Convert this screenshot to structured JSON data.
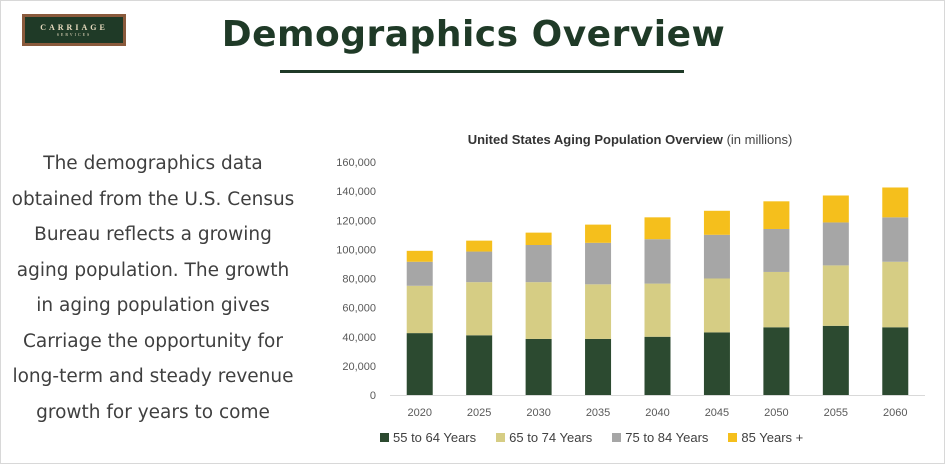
{
  "logo": {
    "main": "CARRIAGE",
    "sub": "SERVICES"
  },
  "page_title": "Demographics Overview",
  "body_text": "The demographics data obtained from the U.S. Census Bureau reflects a growing aging population. The growth in aging population gives Carriage the opportunity for long-term and steady revenue growth for years to come",
  "colors": {
    "title": "#1f3a27",
    "series": [
      "#2c4a30",
      "#d6cd84",
      "#a6a6a6",
      "#f5bf1c"
    ]
  },
  "chart_data": {
    "type": "bar",
    "stacked": true,
    "title": "United States Aging Population Overview",
    "subtitle": "(in millions)",
    "categories": [
      "2020",
      "2025",
      "2030",
      "2035",
      "2040",
      "2045",
      "2050",
      "2055",
      "2060"
    ],
    "series": [
      {
        "name": "55 to 64 Years",
        "values": [
          42500,
          41000,
          38500,
          38500,
          40000,
          43000,
          46500,
          47500,
          46500
        ]
      },
      {
        "name": "65 to 74 Years",
        "values": [
          32500,
          36500,
          39000,
          37500,
          36500,
          37000,
          38000,
          41500,
          45000
        ]
      },
      {
        "name": "75 to 84 Years",
        "values": [
          16500,
          21000,
          25500,
          28500,
          30500,
          30000,
          29500,
          29500,
          30500
        ]
      },
      {
        "name": "85 Years +",
        "values": [
          7500,
          7500,
          8500,
          12500,
          15000,
          16500,
          19000,
          18500,
          20500
        ]
      }
    ],
    "yticks": [
      "0",
      "20,000",
      "40,000",
      "60,000",
      "80,000",
      "100,000",
      "120,000",
      "140,000",
      "160,000"
    ],
    "ylim": [
      0,
      160000
    ],
    "grid": false,
    "legend_position": "bottom"
  }
}
